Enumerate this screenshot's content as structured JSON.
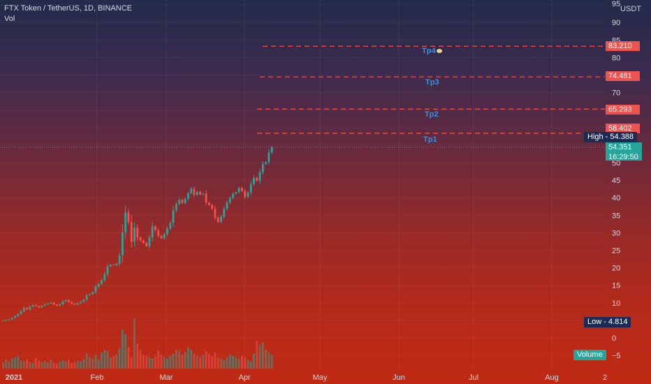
{
  "header": {
    "symbol_title": "FTX Token / TetherUS, 1D, BINANCE",
    "volume_label": "Vol"
  },
  "axis": {
    "unit": "USDT"
  },
  "current_price": {
    "value": "54.351",
    "countdown": "16:29:50"
  },
  "high_marker": "High - 54.388",
  "low_marker": "Low - 4.814",
  "volume_badge": "Volume",
  "targets": [
    {
      "name": "Tp1",
      "price": "58.402"
    },
    {
      "name": "Tp2",
      "price": "65.293"
    },
    {
      "name": "Tp3",
      "price": "74.481"
    },
    {
      "name": "Tp4",
      "price": "83.210"
    }
  ],
  "colors": {
    "up": "#26a69a",
    "down": "#ef5350",
    "target_line": "#ef5350",
    "current_price": "#26a69a",
    "tp_label": "#3d8fe0"
  },
  "chart_data": {
    "type": "candlestick",
    "ylim": [
      -8,
      95
    ],
    "y_ticks": [
      -5,
      0,
      5,
      10,
      15,
      20,
      25,
      30,
      35,
      40,
      45,
      50,
      55,
      60,
      65,
      70,
      75,
      80,
      85,
      90,
      95
    ],
    "x_tick_labels": [
      "2021",
      "Feb",
      "Mar",
      "Apr",
      "May",
      "Jun",
      "Jul",
      "Aug",
      "2"
    ],
    "horizontal_levels": [
      58.402,
      65.293,
      74.481,
      83.21
    ],
    "high": 54.388,
    "low": 4.814,
    "last_close": 54.351,
    "series": [
      {
        "name": "price",
        "values": [
          4.9,
          5.1,
          5.3,
          5.7,
          6.2,
          6.8,
          7.6,
          8.6,
          8.1,
          8.9,
          9.4,
          9.1,
          8.7,
          9.2,
          9.6,
          9.8,
          10.1,
          9.5,
          9.2,
          9.6,
          10.4,
          10.8,
          10.3,
          9.7,
          9.5,
          9.9,
          10.3,
          10.9,
          12.2,
          12.5,
          13.1,
          14.6,
          15.4,
          16.5,
          18.2,
          20.4,
          20.9,
          20.7,
          21.2,
          23.5,
          30.1,
          35.8,
          33.1,
          27.4,
          31.5,
          28.7,
          27.8,
          27.1,
          26.2,
          28.6,
          31.8,
          30.7,
          29.1,
          28.4,
          29.6,
          31.2,
          32.8,
          36.4,
          38.2,
          39.4,
          38.5,
          39.7,
          41.3,
          42.6,
          40.8,
          41.7,
          40.9,
          41.2,
          38.6,
          37.9,
          36.8,
          34.3,
          33.1,
          34.6,
          36.8,
          38.6,
          39.9,
          41.1,
          41.6,
          42.8,
          41.9,
          40.2,
          41.5,
          43.9,
          45.7,
          44.8,
          47.3,
          49.6,
          50.2,
          52.9,
          54.35
        ]
      }
    ],
    "volume": [
      10,
      14,
      11,
      16,
      18,
      20,
      13,
      12,
      15,
      10,
      9,
      17,
      13,
      11,
      12,
      10,
      14,
      9,
      8,
      11,
      13,
      12,
      14,
      9,
      10,
      12,
      11,
      15,
      24,
      18,
      16,
      22,
      14,
      26,
      30,
      28,
      18,
      20,
      22,
      32,
      62,
      55,
      34,
      18,
      80,
      40,
      30,
      22,
      20,
      18,
      16,
      20,
      28,
      22,
      18,
      16,
      20,
      24,
      30,
      28,
      22,
      26,
      34,
      30,
      24,
      20,
      18,
      22,
      28,
      24,
      20,
      26,
      18,
      16,
      14,
      18,
      22,
      20,
      18,
      16,
      20,
      18,
      14,
      12,
      24,
      44,
      38,
      42,
      30,
      26,
      22
    ]
  }
}
